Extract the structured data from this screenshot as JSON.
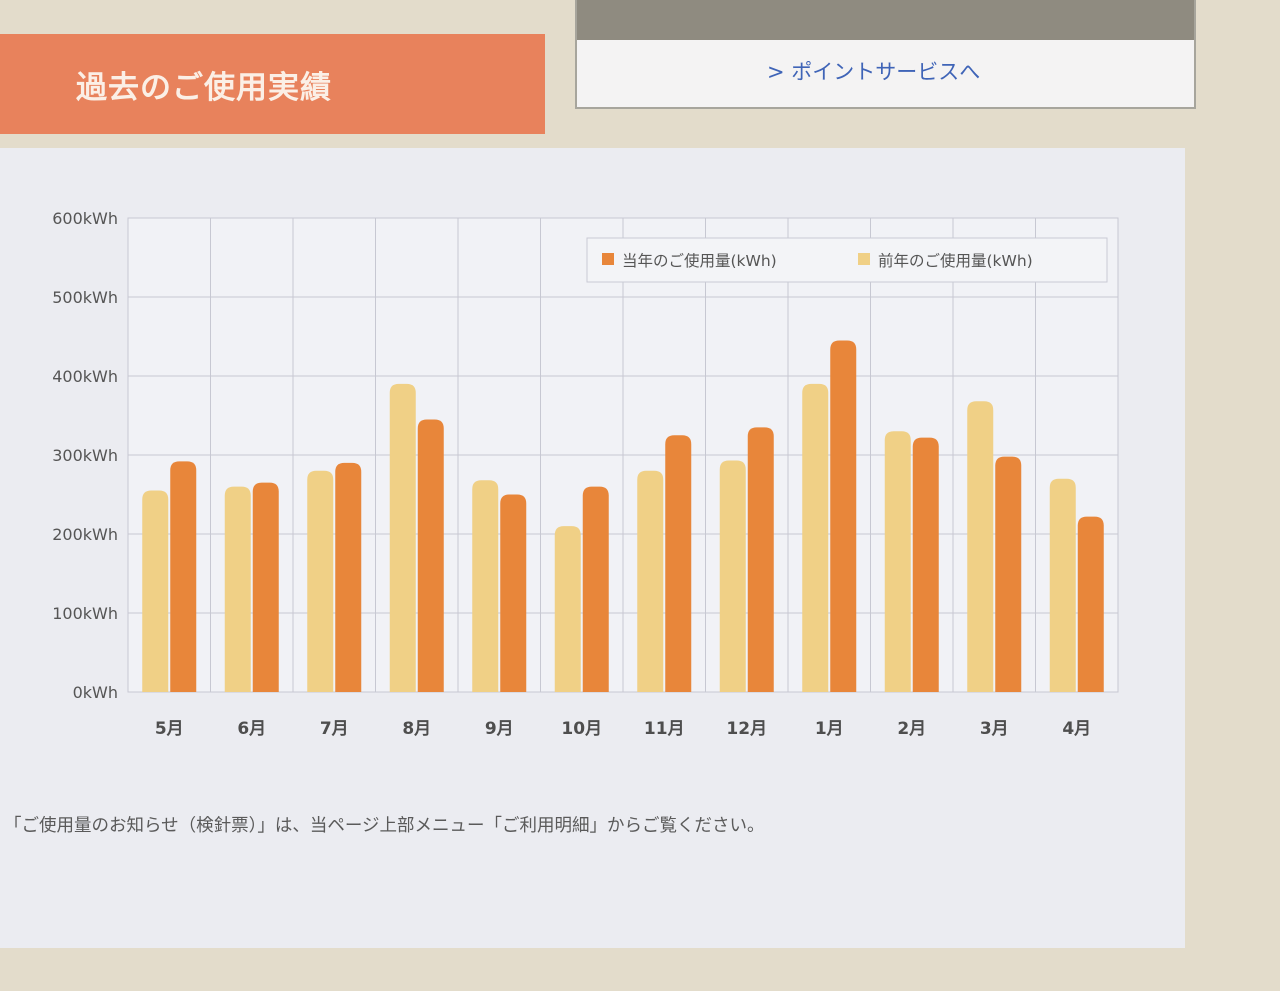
{
  "section": {
    "title": "過去のご使用実績"
  },
  "points_box": {
    "link_label": "> ポイントサービスへ"
  },
  "chart_data": {
    "type": "bar",
    "title": "",
    "xlabel": "",
    "ylabel": "",
    "categories": [
      "5月",
      "6月",
      "7月",
      "8月",
      "9月",
      "10月",
      "11月",
      "12月",
      "1月",
      "2月",
      "3月",
      "4月"
    ],
    "series": [
      {
        "name": "前年のご使用量(kWh)",
        "color": "#f0d086",
        "values": [
          255,
          260,
          280,
          390,
          268,
          210,
          280,
          293,
          390,
          330,
          368,
          270
        ]
      },
      {
        "name": "当年のご使用量(kWh)",
        "color": "#e8863a",
        "values": [
          292,
          265,
          290,
          345,
          250,
          260,
          325,
          335,
          445,
          322,
          298,
          222
        ]
      }
    ],
    "legend_order": [
      1,
      0
    ],
    "ylim": [
      0,
      600
    ],
    "yticks": [
      "0kWh",
      "100kWh",
      "200kWh",
      "300kWh",
      "400kWh",
      "500kWh",
      "600kWh"
    ],
    "grid": true,
    "legend_position": "top-right"
  },
  "note": "「ご使用量のお知らせ（検針票）」は、当ページ上部メニュー「ご利用明細」からご覧ください。",
  "colors": {
    "accent": "#e8825c",
    "link": "#3f64b7",
    "grid": "#c7c8d2",
    "tick_text": "#555555"
  }
}
